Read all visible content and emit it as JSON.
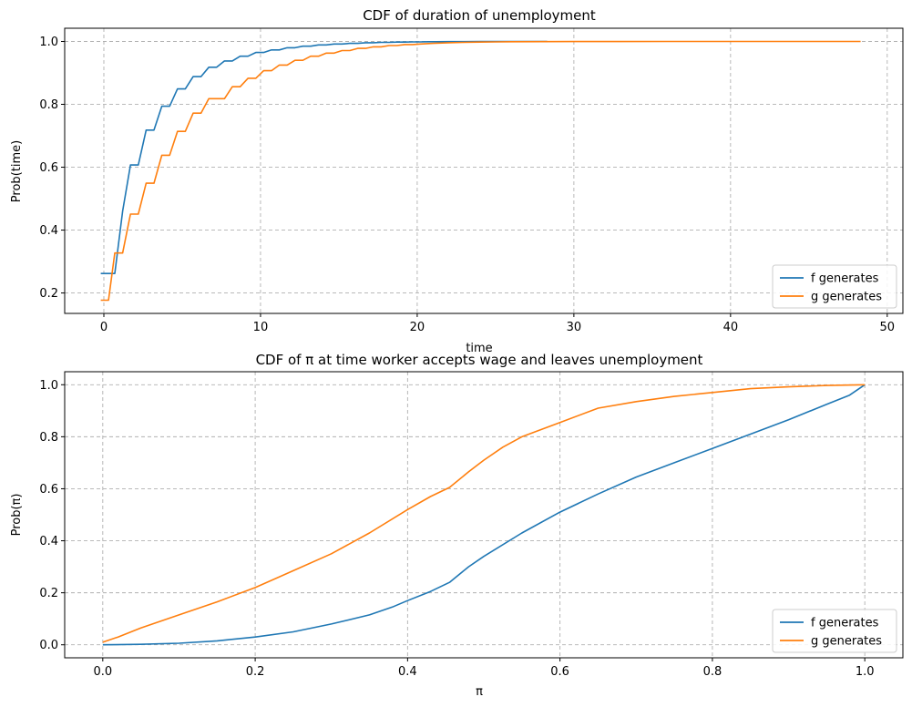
{
  "chart_data": [
    {
      "type": "line",
      "title": "CDF of duration of unemployment",
      "xlabel": "time",
      "ylabel": "Prob(time)",
      "xlim": [
        -2.5,
        51
      ],
      "ylim": [
        0.135,
        1.042
      ],
      "xticks": [
        0,
        10,
        20,
        30,
        40,
        50
      ],
      "xtick_labels": [
        "0",
        "10",
        "20",
        "30",
        "40",
        "50"
      ],
      "yticks": [
        0.2,
        0.4,
        0.6,
        0.8,
        1.0
      ],
      "ytick_labels": [
        "0.2",
        "0.4",
        "0.6",
        "0.8",
        "1.0"
      ],
      "grid": true,
      "legend_position": "lower-right",
      "series": [
        {
          "name": "f generates",
          "color": "#1f77b4",
          "x": [
            -0.2,
            0.3,
            0.7,
            1.2,
            1.7,
            2.2,
            2.7,
            3.2,
            3.7,
            4.2,
            4.7,
            5.2,
            5.7,
            6.2,
            6.7,
            7.2,
            7.7,
            8.2,
            8.7,
            9.2,
            9.7,
            10.2,
            10.7,
            11.2,
            11.7,
            12.2,
            12.7,
            13.2,
            13.7,
            14.2,
            14.7,
            15.2,
            15.7,
            16.2,
            16.7,
            17.2,
            17.7,
            18.2,
            18.7,
            19.2,
            19.7,
            20.2,
            20.7,
            21.2,
            22.0,
            23.0,
            24.0,
            25.0,
            26.0,
            27.0,
            28.3
          ],
          "y": [
            0.262,
            0.262,
            0.262,
            0.46,
            0.607,
            0.607,
            0.718,
            0.718,
            0.794,
            0.794,
            0.849,
            0.849,
            0.888,
            0.888,
            0.918,
            0.918,
            0.938,
            0.938,
            0.953,
            0.953,
            0.965,
            0.965,
            0.973,
            0.973,
            0.98,
            0.98,
            0.985,
            0.985,
            0.989,
            0.989,
            0.992,
            0.992,
            0.994,
            0.994,
            0.996,
            0.996,
            0.997,
            0.997,
            0.998,
            0.998,
            0.9985,
            0.9985,
            0.999,
            0.999,
            0.9993,
            0.9995,
            0.9997,
            0.9998,
            0.9999,
            0.9999,
            1.0
          ]
        },
        {
          "name": "g generates",
          "color": "#ff7f0e",
          "x": [
            -0.2,
            0.3,
            0.7,
            1.2,
            1.7,
            2.2,
            2.7,
            3.2,
            3.7,
            4.2,
            4.7,
            5.2,
            5.7,
            6.2,
            6.7,
            7.2,
            7.7,
            8.2,
            8.7,
            9.2,
            9.7,
            10.2,
            10.7,
            11.2,
            11.7,
            12.2,
            12.7,
            13.2,
            13.7,
            14.2,
            14.7,
            15.2,
            15.7,
            16.2,
            16.7,
            17.2,
            17.7,
            18.2,
            18.7,
            19.2,
            19.7,
            20.2,
            21.0,
            22.0,
            23.0,
            24.0,
            25.0,
            26.0,
            28.0,
            30.0,
            33.0,
            36.0,
            40.0,
            44.0,
            48.3
          ],
          "y": [
            0.177,
            0.177,
            0.327,
            0.327,
            0.451,
            0.451,
            0.549,
            0.549,
            0.638,
            0.638,
            0.714,
            0.714,
            0.772,
            0.772,
            0.818,
            0.818,
            0.818,
            0.856,
            0.856,
            0.883,
            0.883,
            0.907,
            0.907,
            0.925,
            0.925,
            0.94,
            0.94,
            0.953,
            0.953,
            0.963,
            0.963,
            0.971,
            0.971,
            0.978,
            0.978,
            0.983,
            0.983,
            0.987,
            0.987,
            0.99,
            0.99,
            0.992,
            0.994,
            0.996,
            0.997,
            0.998,
            0.9985,
            0.999,
            0.9995,
            0.9997,
            0.9998,
            0.9999,
            0.9999,
            1.0,
            1.0
          ]
        }
      ]
    },
    {
      "type": "line",
      "title": "CDF of π at time worker accepts wage and leaves unemployment",
      "xlabel": "π",
      "ylabel": "Prob(π)",
      "xlim": [
        -0.05,
        1.05
      ],
      "ylim": [
        -0.05,
        1.05
      ],
      "xticks": [
        0.0,
        0.2,
        0.4,
        0.6,
        0.8,
        1.0
      ],
      "xtick_labels": [
        "0.0",
        "0.2",
        "0.4",
        "0.6",
        "0.8",
        "1.0"
      ],
      "yticks": [
        0.0,
        0.2,
        0.4,
        0.6,
        0.8,
        1.0
      ],
      "ytick_labels": [
        "0.0",
        "0.2",
        "0.4",
        "0.6",
        "0.8",
        "1.0"
      ],
      "grid": true,
      "legend_position": "lower-right",
      "series": [
        {
          "name": "f generates",
          "color": "#1f77b4",
          "x": [
            0.0,
            0.05,
            0.1,
            0.15,
            0.2,
            0.25,
            0.3,
            0.35,
            0.38,
            0.4,
            0.43,
            0.455,
            0.48,
            0.5,
            0.55,
            0.6,
            0.65,
            0.7,
            0.75,
            0.8,
            0.85,
            0.9,
            0.95,
            0.98,
            1.0
          ],
          "y": [
            0.0,
            0.002,
            0.006,
            0.015,
            0.03,
            0.05,
            0.08,
            0.115,
            0.145,
            0.17,
            0.205,
            0.24,
            0.3,
            0.34,
            0.43,
            0.51,
            0.58,
            0.645,
            0.7,
            0.755,
            0.81,
            0.865,
            0.925,
            0.96,
            1.0
          ]
        },
        {
          "name": "g generates",
          "color": "#ff7f0e",
          "x": [
            0.0,
            0.02,
            0.05,
            0.1,
            0.15,
            0.2,
            0.25,
            0.3,
            0.35,
            0.4,
            0.43,
            0.455,
            0.48,
            0.5,
            0.525,
            0.55,
            0.6,
            0.65,
            0.7,
            0.75,
            0.8,
            0.85,
            0.9,
            0.95,
            1.0
          ],
          "y": [
            0.01,
            0.03,
            0.065,
            0.115,
            0.165,
            0.22,
            0.285,
            0.35,
            0.43,
            0.52,
            0.57,
            0.605,
            0.665,
            0.71,
            0.76,
            0.8,
            0.855,
            0.91,
            0.935,
            0.955,
            0.97,
            0.985,
            0.992,
            0.997,
            1.0
          ]
        }
      ]
    }
  ]
}
